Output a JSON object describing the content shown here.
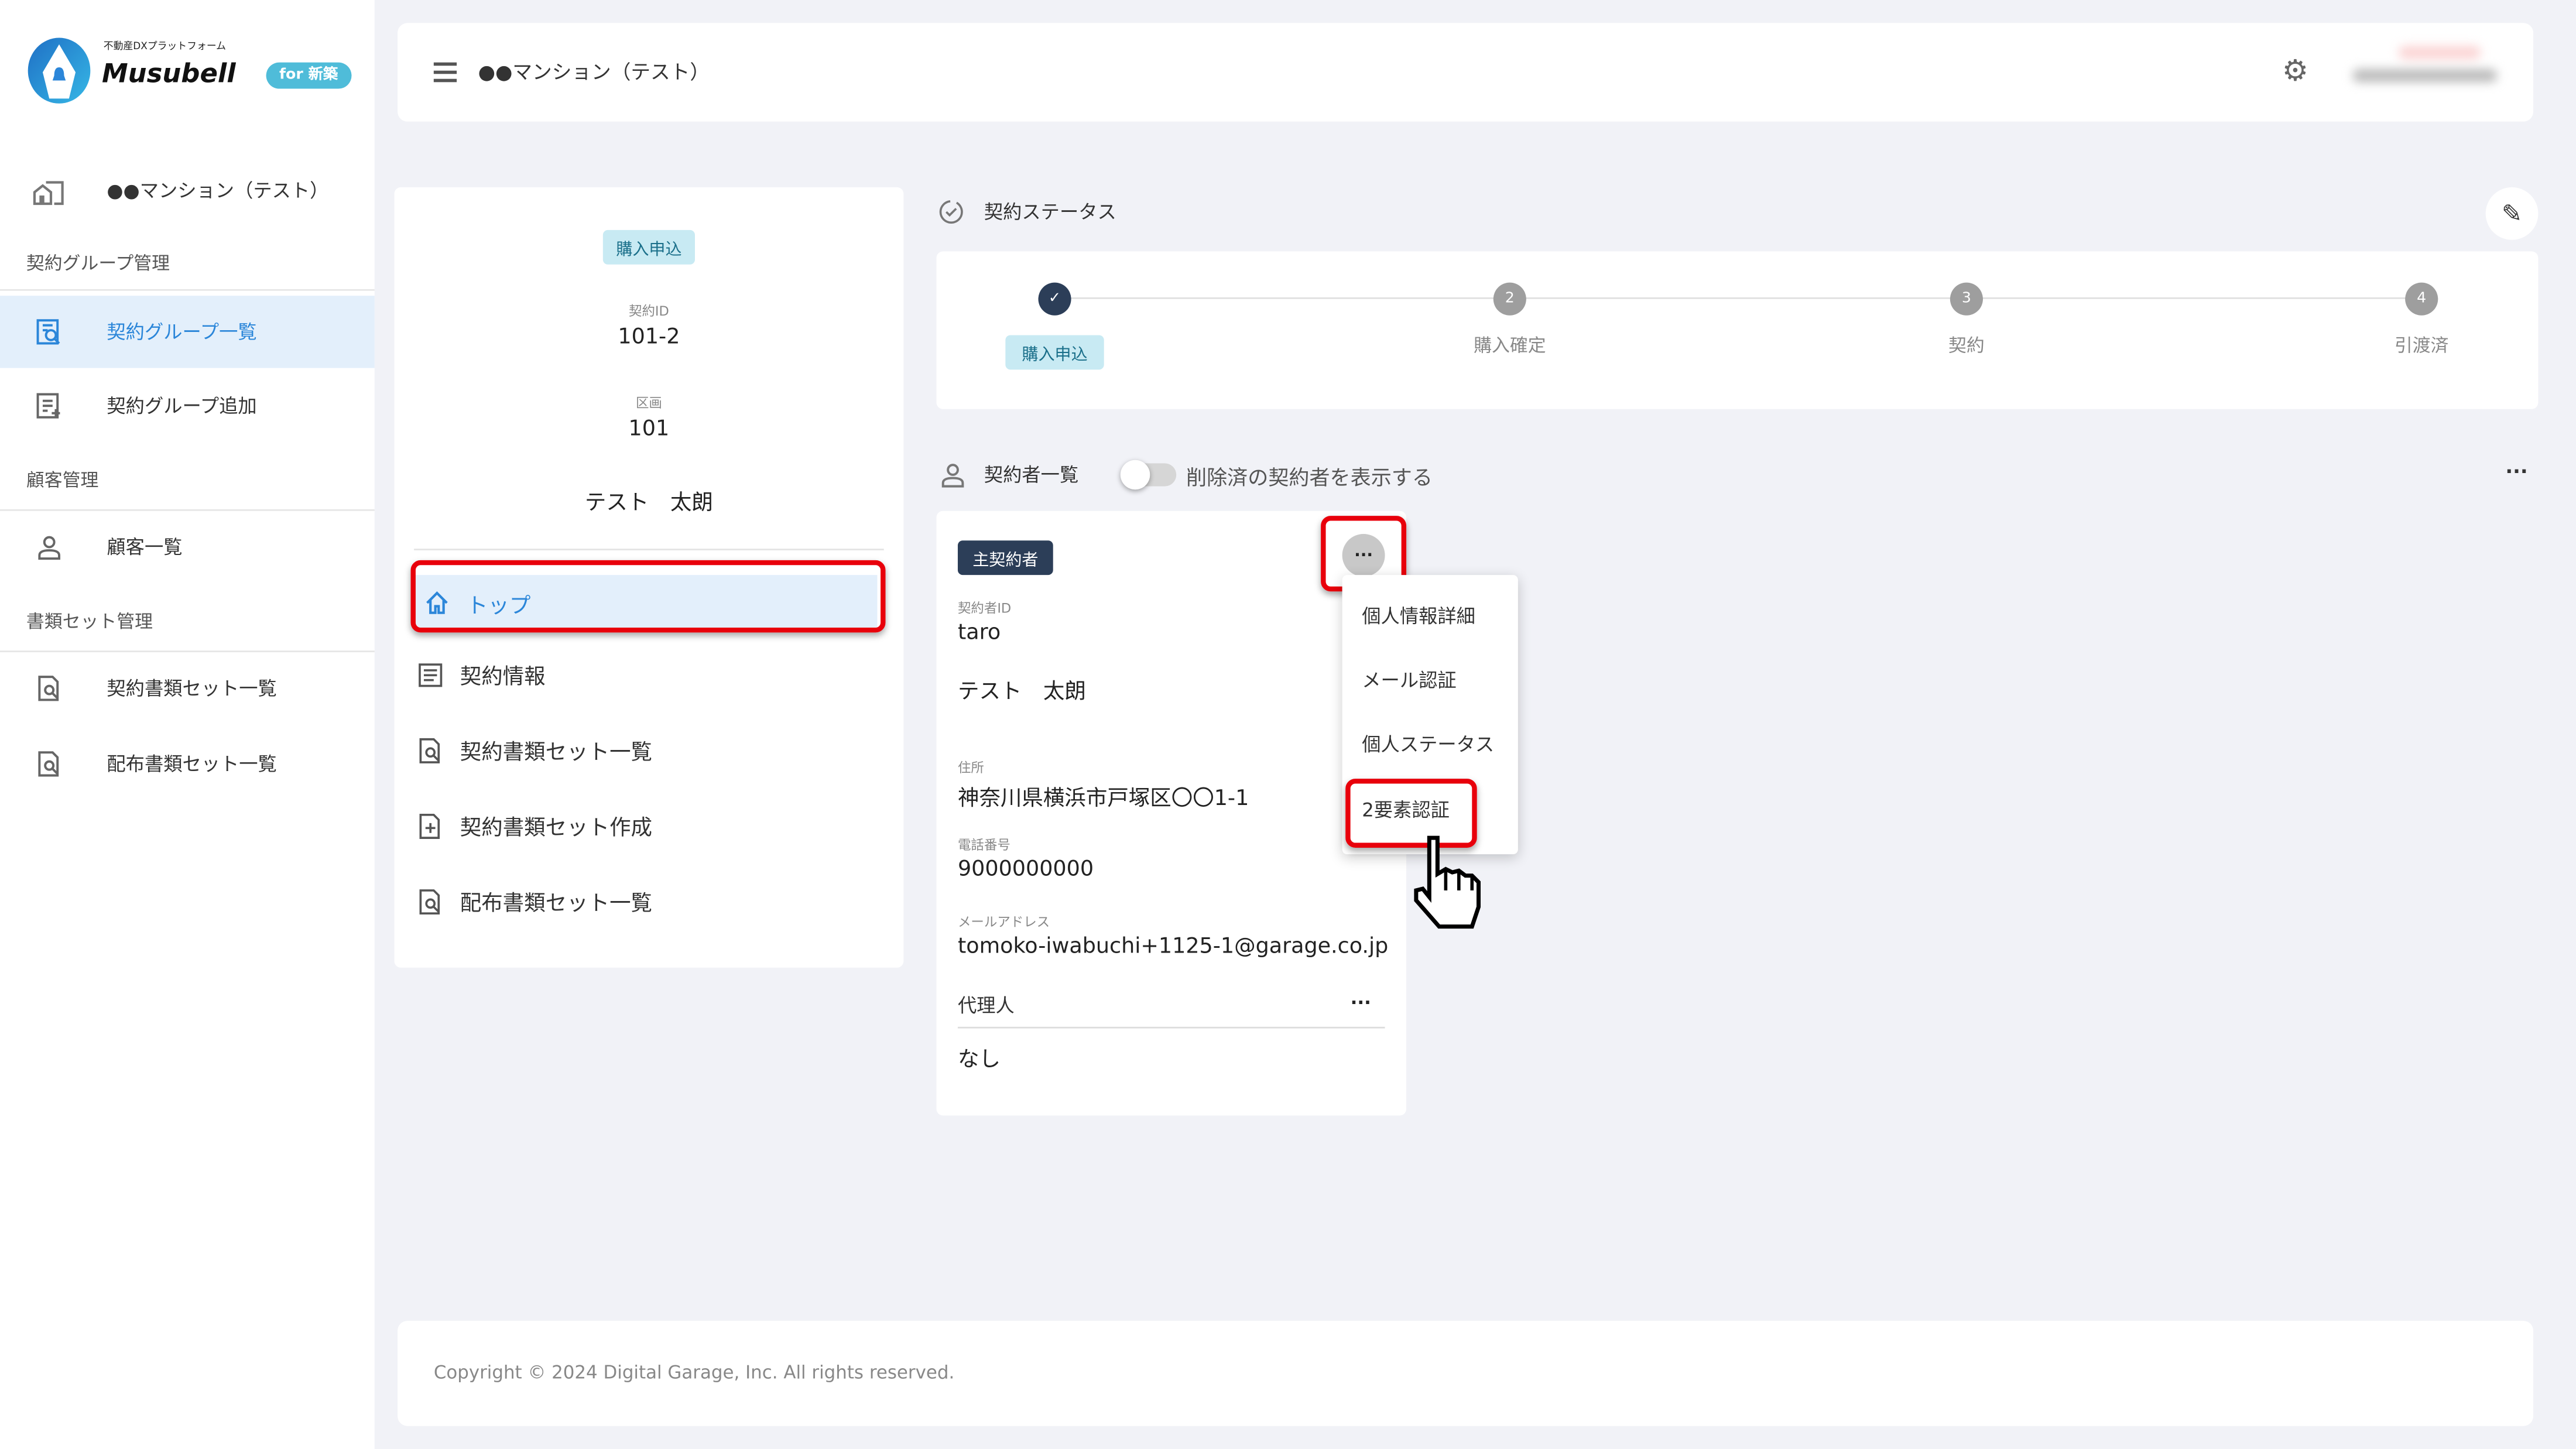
{
  "brand": {
    "tagline": "不動産DXプラットフォーム",
    "name": "Musubell",
    "edition": "for 新築",
    "color": "#2b86d9"
  },
  "sidebar": {
    "property": "●●マンション（テスト）",
    "sections": [
      {
        "title": "契約グループ管理",
        "items": [
          {
            "label": "契約グループ一覧",
            "icon": "search-list-icon",
            "active": true
          },
          {
            "label": "契約グループ追加",
            "icon": "add-list-icon"
          }
        ]
      },
      {
        "title": "顧客管理",
        "items": [
          {
            "label": "顧客一覧",
            "icon": "person-icon"
          }
        ]
      },
      {
        "title": "書類セット管理",
        "items": [
          {
            "label": "契約書類セット一覧",
            "icon": "document-search-icon"
          },
          {
            "label": "配布書類セット一覧",
            "icon": "document-search-icon"
          }
        ]
      }
    ]
  },
  "header": {
    "title": "●●マンション（テスト）",
    "settings_icon": "gear-icon"
  },
  "summary": {
    "status_badge": "購入申込",
    "contract_id_label": "契約ID",
    "contract_id": "101-2",
    "unit_label": "区画",
    "unit": "101",
    "name": "テスト　太朗",
    "menu": [
      {
        "label": "トップ",
        "icon": "home-icon",
        "active": true
      },
      {
        "label": "契約情報",
        "icon": "list-icon"
      },
      {
        "label": "契約書類セット一覧",
        "icon": "document-search-icon"
      },
      {
        "label": "契約書類セット作成",
        "icon": "document-add-icon"
      },
      {
        "label": "配布書類セット一覧",
        "icon": "document-search-icon"
      }
    ]
  },
  "status": {
    "title": "契約ステータス",
    "steps": [
      {
        "num": "1",
        "label": "購入申込",
        "done": true
      },
      {
        "num": "2",
        "label": "購入確定"
      },
      {
        "num": "3",
        "label": "契約"
      },
      {
        "num": "4",
        "label": "引渡済"
      }
    ]
  },
  "contractors": {
    "title": "契約者一覧",
    "toggle_label": "削除済の契約者を表示する",
    "toggle_on": false,
    "card": {
      "role_badge": "主契約者",
      "id_label": "契約者ID",
      "id": "taro",
      "name": "テスト　太朗",
      "address_label": "住所",
      "address": "神奈川県横浜市戸塚区〇〇1-1",
      "phone_label": "電話番号",
      "phone": "9000000000",
      "email_label": "メールアドレス",
      "email": "tomoko-iwabuchi+1125-1@garage.co.jp",
      "agent_label": "代理人",
      "agent": "なし"
    },
    "dropdown": [
      "個人情報詳細",
      "メール認証",
      "個人ステータス",
      "2要素認証"
    ]
  },
  "footer": {
    "copyright": "Copyright © 2024 Digital Garage, Inc. All rights reserved."
  }
}
